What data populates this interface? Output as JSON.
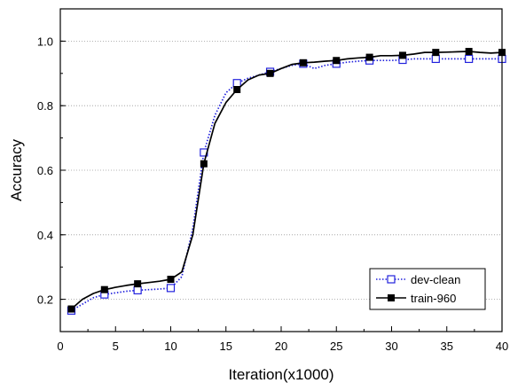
{
  "chart_data": {
    "type": "line",
    "xlabel": "Iteration(x1000)",
    "ylabel": "Accuracy",
    "xlim": [
      0,
      40
    ],
    "ylim": [
      0.1,
      1.1
    ],
    "xticks": [
      0,
      5,
      10,
      15,
      20,
      25,
      30,
      35,
      40
    ],
    "yticks": [
      0.2,
      0.4,
      0.6,
      0.8,
      1.0
    ],
    "xtick_labels": [
      "0",
      "5",
      "10",
      "15",
      "20",
      "25",
      "30",
      "35",
      "40"
    ],
    "ytick_labels": [
      "0.2",
      "0.4",
      "0.6",
      "0.8",
      "1.0"
    ],
    "grid": "horizontal dotted",
    "legend_position": "bottom-right",
    "series": [
      {
        "name": "dev-clean",
        "color": "#2222dd",
        "style": "dotted",
        "marker": "open-square",
        "x": [
          1,
          2,
          3,
          4,
          5,
          6,
          7,
          8,
          9,
          10,
          11,
          12,
          13,
          14,
          15,
          16,
          17,
          18,
          19,
          20,
          21,
          22,
          23,
          24,
          25,
          26,
          27,
          28,
          29,
          30,
          31,
          32,
          33,
          34,
          35,
          36,
          37,
          38,
          39,
          40
        ],
        "y": [
          0.165,
          0.185,
          0.205,
          0.215,
          0.22,
          0.225,
          0.228,
          0.23,
          0.232,
          0.235,
          0.27,
          0.42,
          0.655,
          0.77,
          0.84,
          0.87,
          0.885,
          0.895,
          0.905,
          0.915,
          0.925,
          0.93,
          0.915,
          0.925,
          0.93,
          0.935,
          0.938,
          0.94,
          0.94,
          0.94,
          0.942,
          0.945,
          0.945,
          0.945,
          0.945,
          0.945,
          0.945,
          0.945,
          0.945,
          0.945
        ],
        "markers_at": [
          1,
          4,
          7,
          10,
          13,
          16,
          19,
          22,
          25,
          28,
          31,
          34,
          37,
          40
        ]
      },
      {
        "name": "train-960",
        "color": "#000000",
        "style": "solid",
        "marker": "filled-square",
        "x": [
          1,
          2,
          3,
          4,
          5,
          6,
          7,
          8,
          9,
          10,
          11,
          12,
          13,
          14,
          15,
          16,
          17,
          18,
          19,
          20,
          21,
          22,
          23,
          24,
          25,
          26,
          27,
          28,
          29,
          30,
          31,
          32,
          33,
          34,
          35,
          36,
          37,
          38,
          39,
          40
        ],
        "y": [
          0.17,
          0.2,
          0.218,
          0.23,
          0.237,
          0.243,
          0.248,
          0.252,
          0.256,
          0.262,
          0.285,
          0.4,
          0.62,
          0.745,
          0.81,
          0.85,
          0.88,
          0.895,
          0.9,
          0.915,
          0.928,
          0.933,
          0.935,
          0.938,
          0.94,
          0.945,
          0.948,
          0.95,
          0.955,
          0.955,
          0.956,
          0.96,
          0.965,
          0.965,
          0.966,
          0.967,
          0.968,
          0.965,
          0.963,
          0.965
        ],
        "markers_at": [
          1,
          4,
          7,
          10,
          13,
          16,
          19,
          22,
          25,
          28,
          31,
          34,
          37,
          40
        ]
      }
    ]
  }
}
